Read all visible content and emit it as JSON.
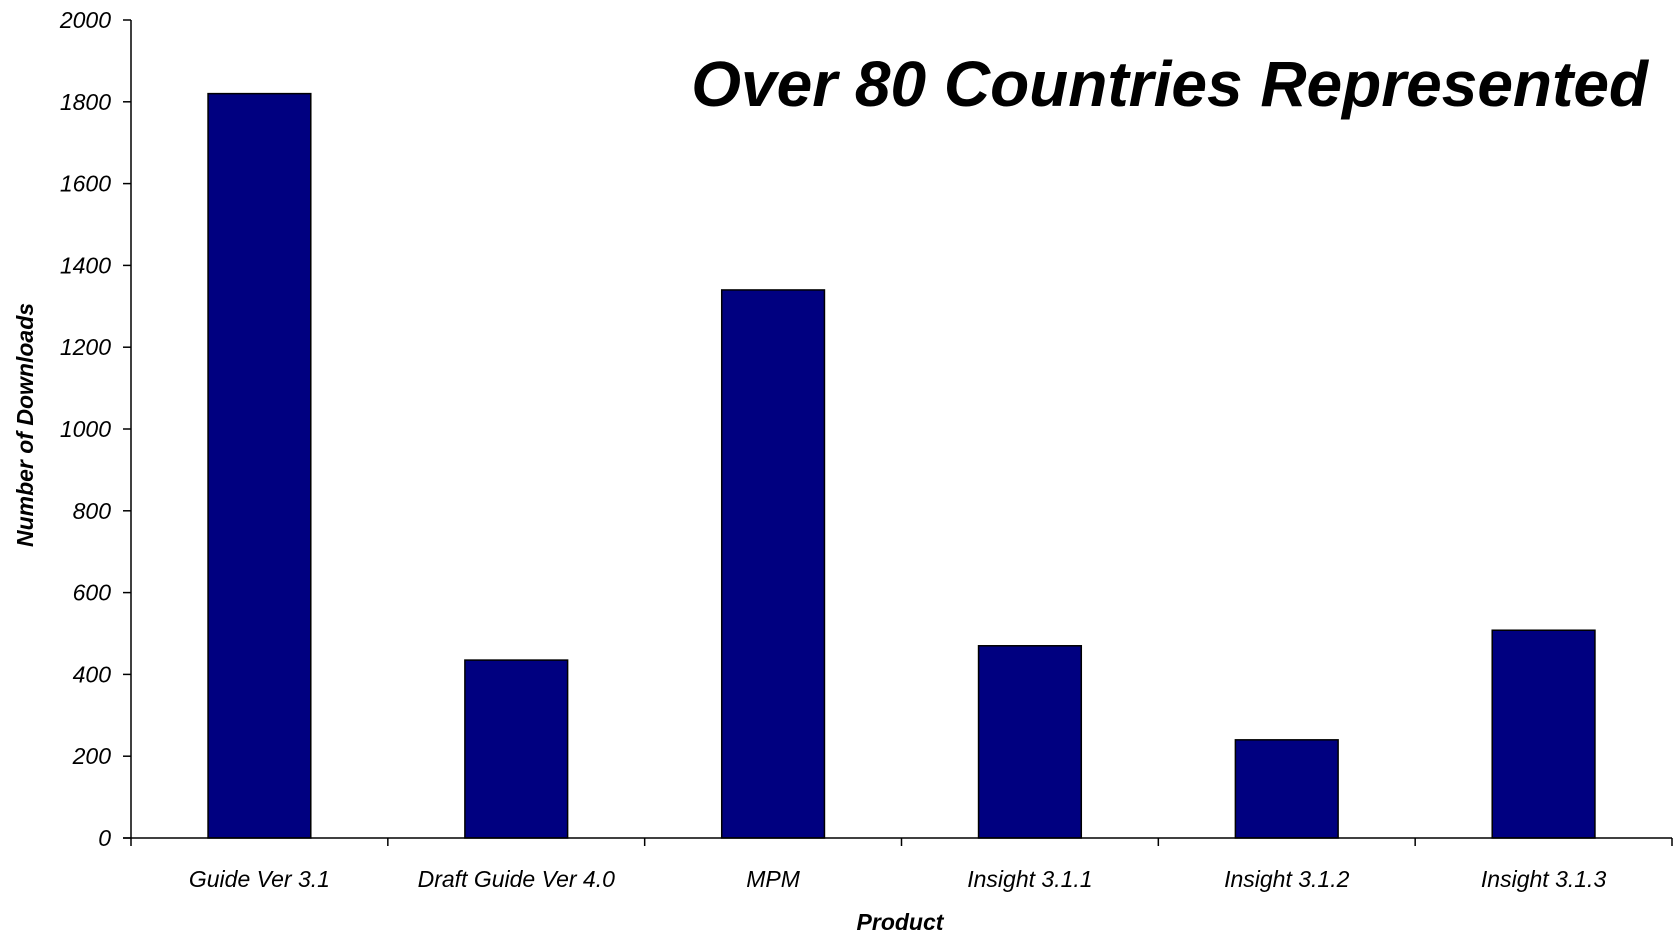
{
  "chart_data": {
    "type": "bar",
    "title": "",
    "annotation": "Over 80 Countries Represented",
    "xlabel": "Product",
    "ylabel": "Number of Downloads",
    "categories": [
      "Guide Ver 3.1",
      "Draft Guide Ver 4.0",
      "MPM",
      "Insight 3.1.1",
      "Insight 3.1.2",
      "Insight 3.1.3"
    ],
    "values": [
      1820,
      435,
      1340,
      470,
      240,
      508
    ],
    "ylim": [
      0,
      2000
    ],
    "yticks": [
      0,
      200,
      400,
      600,
      800,
      1000,
      1200,
      1400,
      1600,
      1800,
      2000
    ],
    "grid": false,
    "legend": "none",
    "colors": {
      "bar": "#000080",
      "bar_edge": "#000000",
      "annotation": "#000080",
      "axis": "#000000"
    }
  }
}
